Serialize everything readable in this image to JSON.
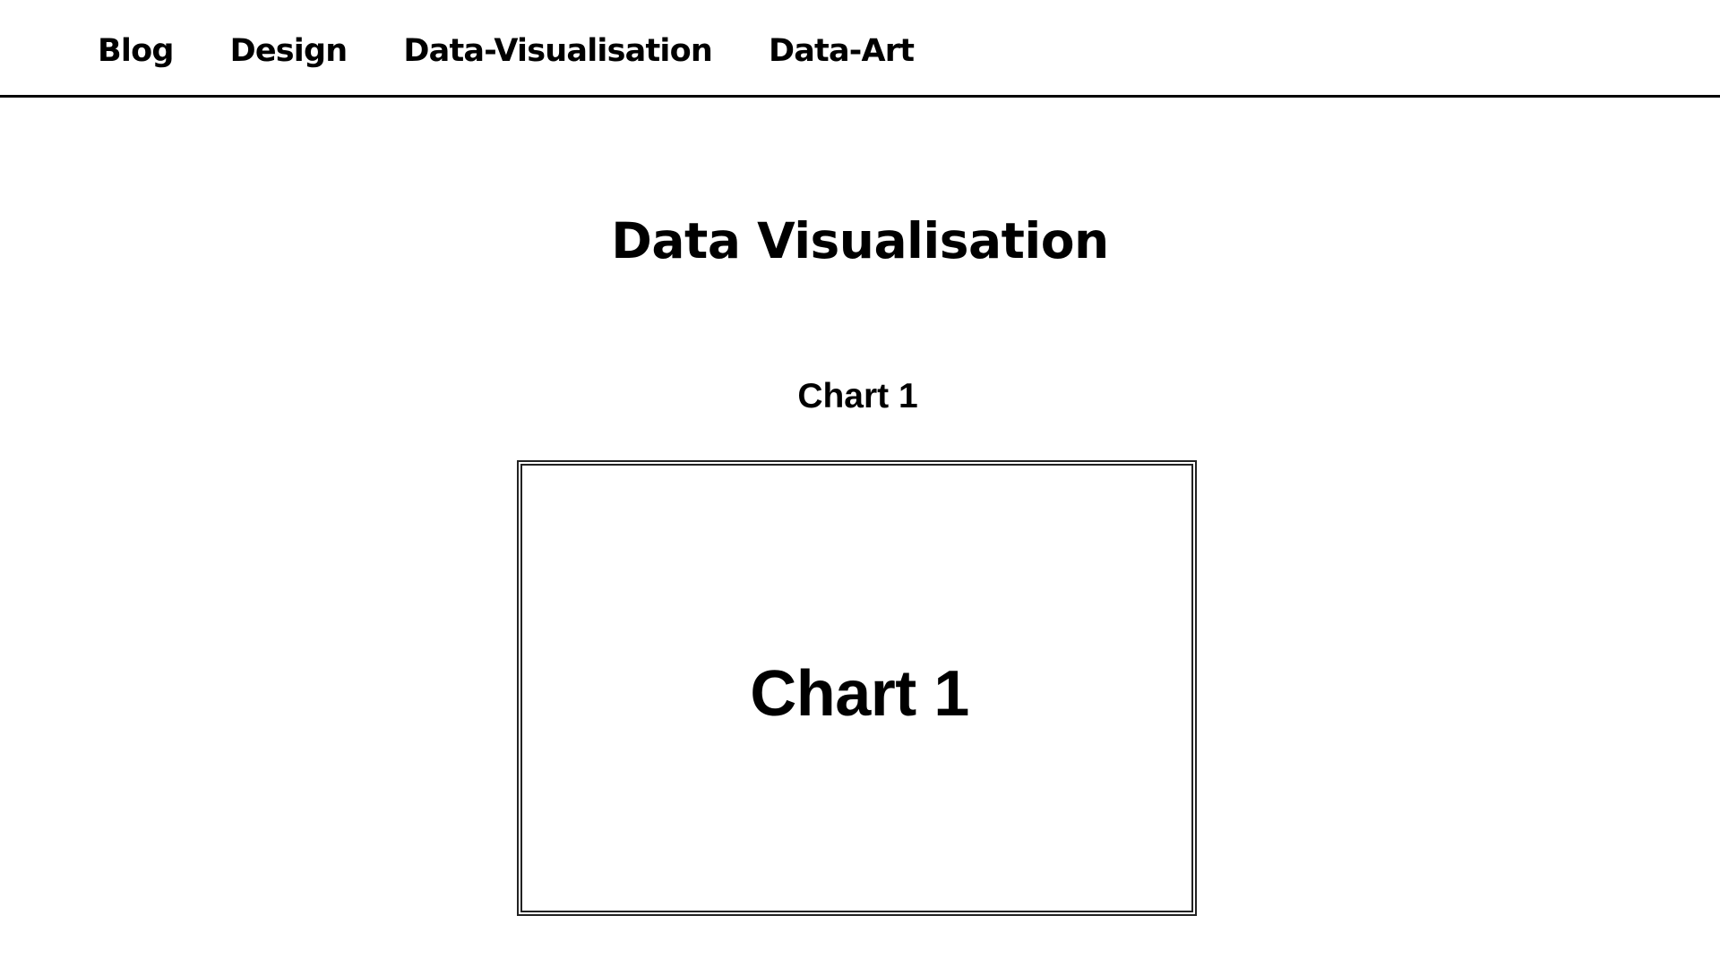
{
  "nav": {
    "items": [
      {
        "label": "Blog"
      },
      {
        "label": "Design"
      },
      {
        "label": "Data-Visualisation"
      },
      {
        "label": "Data-Art"
      }
    ]
  },
  "main": {
    "title": "Data Visualisation",
    "sections": [
      {
        "heading": "Chart 1",
        "placeholder_label": "Chart 1"
      }
    ]
  },
  "colors": {
    "text": "#000000",
    "background": "#ffffff",
    "border": "#222222"
  }
}
